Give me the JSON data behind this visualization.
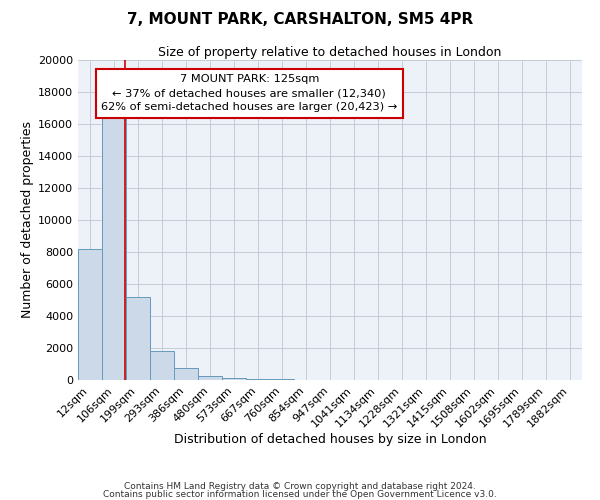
{
  "title": "7, MOUNT PARK, CARSHALTON, SM5 4PR",
  "subtitle": "Size of property relative to detached houses in London",
  "xlabel": "Distribution of detached houses by size in London",
  "ylabel": "Number of detached properties",
  "bar_color": "#ccd9e8",
  "bar_edge_color": "#6699bb",
  "bg_color": "#edf1f8",
  "grid_color": "#c5ccd8",
  "categories": [
    "12sqm",
    "106sqm",
    "199sqm",
    "293sqm",
    "386sqm",
    "480sqm",
    "573sqm",
    "667sqm",
    "760sqm",
    "854sqm",
    "947sqm",
    "1041sqm",
    "1134sqm",
    "1228sqm",
    "1321sqm",
    "1415sqm",
    "1508sqm",
    "1602sqm",
    "1695sqm",
    "1789sqm",
    "1882sqm"
  ],
  "bar_heights": [
    8200,
    16600,
    5200,
    1800,
    750,
    250,
    150,
    80,
    60,
    0,
    0,
    0,
    0,
    0,
    0,
    0,
    0,
    0,
    0,
    0,
    0
  ],
  "ylim": [
    0,
    20000
  ],
  "yticks": [
    0,
    2000,
    4000,
    6000,
    8000,
    10000,
    12000,
    14000,
    16000,
    18000,
    20000
  ],
  "red_line_color": "#cc0000",
  "red_line_x": 1.45,
  "annotation_line1": "7 MOUNT PARK: 125sqm",
  "annotation_line2": "← 37% of detached houses are smaller (12,340)",
  "annotation_line3": "62% of semi-detached houses are larger (20,423) →",
  "annotation_box_facecolor": "#ffffff",
  "annotation_box_edgecolor": "#cc0000",
  "footer_line1": "Contains HM Land Registry data © Crown copyright and database right 2024.",
  "footer_line2": "Contains public sector information licensed under the Open Government Licence v3.0."
}
